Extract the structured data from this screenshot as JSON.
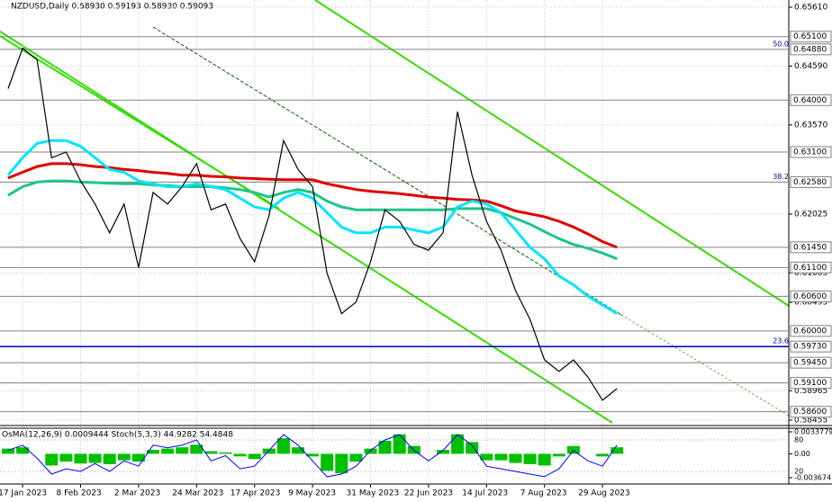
{
  "chart_data": [
    {
      "type": "line",
      "title": "NZDUSD,Daily 0.58930 0.59193 0.58930 0.59093",
      "categories": [
        null,
        "17 Jan 2023",
        null,
        null,
        null,
        "8 Feb 2023",
        null,
        null,
        null,
        "2 Mar 2023",
        null,
        null,
        null,
        "24 Mar 2023",
        null,
        null,
        null,
        "17 Apr 2023",
        null,
        null,
        null,
        "9 May 2023",
        null,
        null,
        null,
        "31 May 2023",
        null,
        null,
        null,
        "22 Jun 2023",
        null,
        null,
        null,
        "14 Jul 2023",
        null,
        null,
        null,
        "7 Aug 2023",
        null,
        null,
        null,
        "29 Aug 2023",
        null
      ],
      "series": [
        {
          "color": "#000000",
          "values": [
            0.642,
            0.649,
            0.647,
            0.63,
            0.631,
            0.626,
            0.622,
            0.617,
            0.622,
            0.611,
            0.624,
            0.622,
            0.625,
            0.629,
            0.621,
            0.622,
            0.616,
            0.612,
            0.62,
            0.633,
            0.628,
            0.625,
            0.61,
            0.603,
            0.605,
            0.612,
            0.621,
            0.619,
            0.615,
            0.614,
            0.617,
            0.638,
            0.627,
            0.619,
            0.614,
            0.607,
            0.602,
            0.595,
            0.593,
            0.595,
            0.592,
            0.588,
            0.59
          ]
        },
        {
          "color": "#e00000",
          "values": [
            0.6265,
            0.6275,
            0.6285,
            0.629,
            0.629,
            0.6288,
            0.6285,
            0.6283,
            0.628,
            0.6278,
            0.6275,
            0.6273,
            0.627,
            0.627,
            0.6268,
            0.6267,
            0.6265,
            0.6264,
            0.6263,
            0.6262,
            0.6262,
            0.6262,
            0.6255,
            0.625,
            0.6245,
            0.6242,
            0.624,
            0.6238,
            0.6235,
            0.6232,
            0.623,
            0.6228,
            0.6227,
            0.6225,
            0.6217,
            0.6208,
            0.6203,
            0.6198,
            0.619,
            0.618,
            0.6168,
            0.6155,
            0.6145
          ]
        },
        {
          "color": "#1fc48a",
          "values": [
            0.6235,
            0.625,
            0.6258,
            0.626,
            0.626,
            0.6258,
            0.6257,
            0.6256,
            0.6255,
            0.6255,
            0.6253,
            0.6252,
            0.625,
            0.625,
            0.625,
            0.6248,
            0.6245,
            0.624,
            0.6232,
            0.624,
            0.6245,
            0.624,
            0.6225,
            0.6215,
            0.621,
            0.621,
            0.621,
            0.621,
            0.621,
            0.621,
            0.621,
            0.6212,
            0.6212,
            0.6212,
            0.6205,
            0.6195,
            0.6185,
            0.6172,
            0.616,
            0.615,
            0.6143,
            0.6135,
            0.6125
          ]
        },
        {
          "color": "#00e5ff",
          "values": [
            0.627,
            0.63,
            0.6325,
            0.633,
            0.633,
            0.632,
            0.63,
            0.628,
            0.6275,
            0.626,
            0.6255,
            0.625,
            0.625,
            0.6255,
            0.625,
            0.6245,
            0.623,
            0.6215,
            0.621,
            0.623,
            0.624,
            0.623,
            0.6205,
            0.618,
            0.617,
            0.617,
            0.618,
            0.618,
            0.6175,
            0.617,
            0.618,
            0.6215,
            0.6225,
            0.622,
            0.6205,
            0.6175,
            0.6145,
            0.6125,
            0.6095,
            0.608,
            0.606,
            0.6045,
            0.603
          ]
        }
      ],
      "ylim": [
        0.58408,
        0.65735
      ],
      "yticks": [
        {
          "value": 0.6561,
          "label": "0.65610"
        },
        {
          "value": 0.6459,
          "label": "0.64590"
        },
        {
          "value": 0.6357,
          "label": "0.63570"
        },
        {
          "value": 0.62025,
          "label": "0.62025"
        },
        {
          "value": 0.61005,
          "label": "0.61005"
        },
        {
          "value": 0.60495,
          "label": "0.60495"
        },
        {
          "value": 0.58965,
          "label": "0.58965"
        },
        {
          "value": 0.58455,
          "label": "0.58455"
        }
      ],
      "levels": [
        {
          "value": 0.651,
          "label": "0.65100"
        },
        {
          "value": 0.6488,
          "label": "0.64880"
        },
        {
          "value": 0.64,
          "label": "0.64000"
        },
        {
          "value": 0.631,
          "label": "0.63100"
        },
        {
          "value": 0.6258,
          "label": "0.62580"
        },
        {
          "value": 0.6145,
          "label": "0.61450"
        },
        {
          "value": 0.611,
          "label": "0.61100"
        },
        {
          "value": 0.606,
          "label": "0.60600"
        },
        {
          "value": 0.6,
          "label": "0.60000"
        },
        {
          "value": 0.5973,
          "label": "0.59730"
        },
        {
          "value": 0.5945,
          "label": "0.59450"
        },
        {
          "value": 0.591,
          "label": "0.59100"
        },
        {
          "value": 0.586,
          "label": "0.58600"
        }
      ],
      "key_level_color": "#0000c0",
      "fib_labels": [
        {
          "label": "50.0",
          "price": 0.6488
        },
        {
          "label": "38.2",
          "price": 0.6258
        },
        {
          "label": "23.6",
          "price": 0.5973
        }
      ],
      "grid": true
    },
    {
      "type": "bar",
      "title": "OsMA(12,26,9) 0.0009444 Stoch(5,3,3) 44.9282 54.4848",
      "color": "#00c000",
      "values": [
        0.0008,
        0.001,
        0.0,
        -0.0018,
        -0.0012,
        -0.0015,
        -0.0014,
        -0.0016,
        -0.001,
        -0.0012,
        0.0006,
        0.0008,
        0.001,
        0.0014,
        0.0004,
        0.0002,
        -0.0004,
        -0.0008,
        0.0008,
        0.0024,
        0.001,
        -0.0004,
        -0.0026,
        -0.003,
        -0.0012,
        0.0008,
        0.002,
        0.003,
        0.0012,
        0.0,
        0.0006,
        0.003,
        0.0018,
        -0.001,
        -0.001,
        -0.0014,
        -0.0016,
        -0.0018,
        -0.0004,
        0.0012,
        0.0,
        -0.0004,
        0.001
      ],
      "ylim": [
        -0.0045037,
        0.003931
      ],
      "yticks": [
        0.0033779,
        {
          "value": 0,
          "label": "0.00"
        },
        -0.003674
      ],
      "series": [
        {
          "color": "#0000ff",
          "axis": "y2",
          "values": [
            60,
            70,
            45,
            15,
            25,
            20,
            35,
            20,
            40,
            30,
            70,
            65,
            70,
            80,
            40,
            50,
            25,
            30,
            60,
            90,
            70,
            40,
            10,
            15,
            30,
            60,
            80,
            90,
            60,
            40,
            60,
            90,
            70,
            30,
            25,
            20,
            15,
            10,
            25,
            60,
            40,
            30,
            70
          ]
        }
      ],
      "y2lim": [
        -2.2,
        102.2
      ],
      "y2ticks": [
        80,
        20
      ]
    }
  ]
}
